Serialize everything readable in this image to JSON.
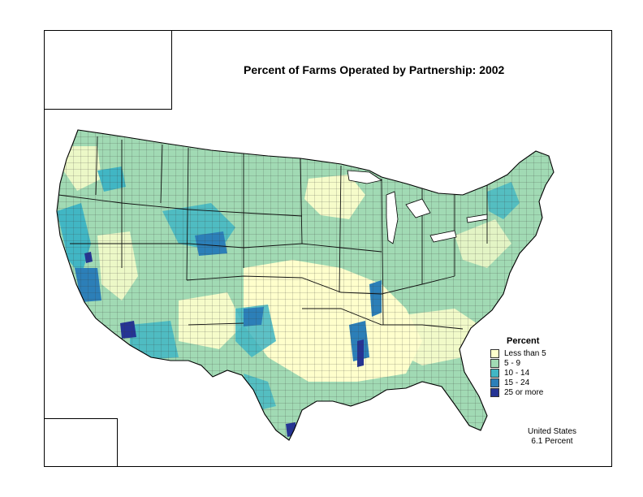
{
  "title": "Percent of Farms Operated by Partnership:  2002",
  "legend": {
    "title": "Percent",
    "classes": [
      {
        "label": "Less than 5",
        "color": "#ffffcc"
      },
      {
        "label": "5 - 9",
        "color": "#a1dab4"
      },
      {
        "label": "10 - 14",
        "color": "#41b6c4"
      },
      {
        "label": "15 - 24",
        "color": "#2c7fb8"
      },
      {
        "label": "25 or more",
        "color": "#253494"
      }
    ]
  },
  "summary": {
    "line1": "United States",
    "line2": "6.1 Percent"
  }
}
